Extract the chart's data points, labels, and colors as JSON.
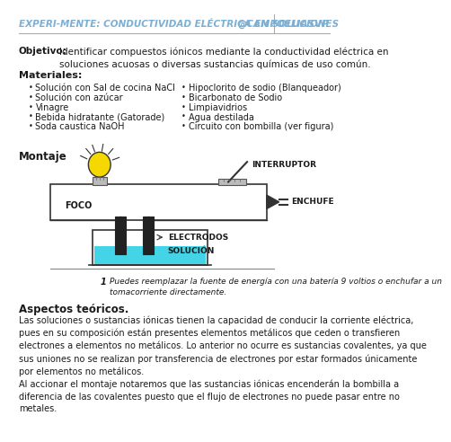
{
  "bg_color": "#ffffff",
  "header_text": "EXPERI-MENTE: CONDUCTIVIDAD ELÉCTRICA EN SOLUCIONES",
  "header_handle": "@CAMPOELIASVP",
  "header_color": "#7bafd4",
  "objetivo_bold": "Objetivo:",
  "objetivo_text": " Identificar compuestos iónicos mediante la conductividad eléctrica en\nsoluciones acuosas o diversas sustancias químicas de uso común.",
  "materiales_title": "Materiales:",
  "materiales_left": [
    "Solución con Sal de cocina NaCl",
    "Solución con azúcar",
    "Vinagre",
    "Bebida hidratante (Gatorade)",
    "Soda caustica NaOH",
    ""
  ],
  "materiales_right": [
    "Hipoclorito de sodio (Blanqueador)",
    "Bicarbonato de Sodio",
    "Limpiavidrios",
    "Agua destilada",
    "Circuito con bombilla (ver figura)"
  ],
  "montaje_title": "Montaje",
  "footnote_num": "1",
  "footnote_text": " Puedes reemplazar la fuente de energía con una batería 9 voltios o enchufar a un\ntomacorriente directamente.",
  "aspectos_title": "Aspectos teóricos.",
  "aspectos_text": "Las soluciones o sustancias iónicas tienen la capacidad de conducir la corriente eléctrica,\npues en su composición están presentes elementos metálicos que ceden o transfieren\nelectrones a elementos no metálicos. Lo anterior no ocurre es sustancias covalentes, ya que\nsus uniones no se realizan por transferencia de electrones por estar formados únicamente\npor elementos no metálicos.\nAl accionar el montaje notaremos que las sustancias iónicas encenderán la bombilla a\ndiferencia de las covalentes puesto que el flujo de electrones no puede pasar entre no\nmetales.",
  "text_color": "#1a1a1a",
  "bullet": "•"
}
